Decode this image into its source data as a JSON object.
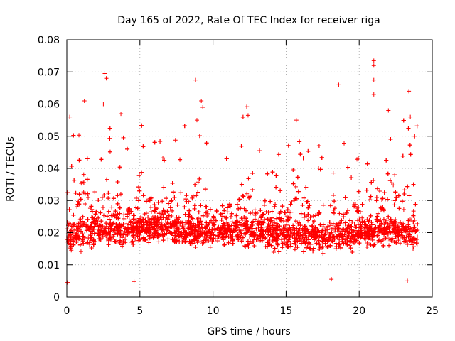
{
  "chart_data": {
    "type": "scatter",
    "title": "Day 165 of 2022, Rate Of TEC Index for receiver riga",
    "xlabel": "GPS time / hours",
    "ylabel": "ROTI / TECUs",
    "xlim": [
      0,
      25
    ],
    "ylim": [
      0,
      0.08
    ],
    "xticks": [
      0,
      5,
      10,
      15,
      20,
      25
    ],
    "yticks": [
      0,
      0.01,
      0.02,
      0.03,
      0.04,
      0.05,
      0.06,
      0.07,
      0.08
    ],
    "xtick_labels": [
      "0",
      "5",
      "10",
      "15",
      "20",
      "25"
    ],
    "ytick_labels": [
      "0",
      "0.01",
      "0.02",
      "0.03",
      "0.04",
      "0.05",
      "0.06",
      "0.07",
      "0.08"
    ],
    "grid": true,
    "marker": "+",
    "color": "#ff0000",
    "series": [
      {
        "name": "ROTI",
        "x_range": [
          0,
          24
        ],
        "baseline": [
          [
            0,
            0.019
          ],
          [
            2,
            0.021
          ],
          [
            4,
            0.021
          ],
          [
            6,
            0.022
          ],
          [
            8,
            0.021
          ],
          [
            10,
            0.02
          ],
          [
            12,
            0.021
          ],
          [
            14,
            0.02
          ],
          [
            16,
            0.019
          ],
          [
            18,
            0.019
          ],
          [
            20,
            0.02
          ],
          [
            22,
            0.021
          ],
          [
            24,
            0.02
          ]
        ],
        "notable_points": [
          [
            0.05,
            0.0045
          ],
          [
            0.2,
            0.056
          ],
          [
            1.2,
            0.061
          ],
          [
            2.6,
            0.0695
          ],
          [
            2.7,
            0.068
          ],
          [
            2.5,
            0.06
          ],
          [
            3.7,
            0.057
          ],
          [
            4.6,
            0.0048
          ],
          [
            8.8,
            0.0675
          ],
          [
            9.2,
            0.061
          ],
          [
            9.3,
            0.059
          ],
          [
            8.9,
            0.055
          ],
          [
            12.4,
            0.0565
          ],
          [
            15.7,
            0.055
          ],
          [
            18.6,
            0.066
          ],
          [
            18.1,
            0.0055
          ],
          [
            21.0,
            0.0735
          ],
          [
            21.0,
            0.072
          ],
          [
            21.0,
            0.0675
          ],
          [
            21.0,
            0.063
          ],
          [
            22.0,
            0.058
          ],
          [
            23.4,
            0.064
          ],
          [
            23.3,
            0.005
          ],
          [
            23.5,
            0.056
          ],
          [
            23.8,
            0.05
          ]
        ],
        "burst_times": [
          0.3,
          1.2,
          2.6,
          5.2,
          7.5,
          8.5,
          9.1,
          12.3,
          15.7,
          17.6,
          18.1,
          21.0,
          22.2,
          23.3,
          23.7
        ]
      }
    ]
  }
}
